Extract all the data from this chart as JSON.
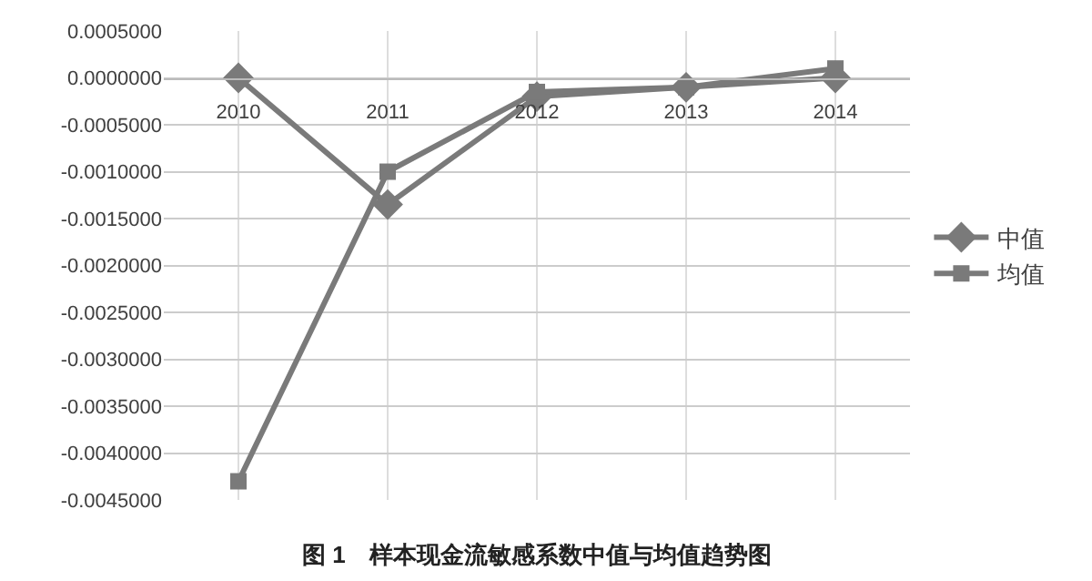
{
  "chart_data": {
    "type": "line",
    "title": "图 1　样本现金流敏感系数中值与均值趋势图",
    "categories": [
      "2010",
      "2011",
      "2012",
      "2013",
      "2014"
    ],
    "series": [
      {
        "name": "中值",
        "color": "#7a7a7a",
        "marker": "diamond",
        "values": [
          0.0,
          -0.00135,
          -0.0002,
          -0.0001,
          0.0
        ]
      },
      {
        "name": "均值",
        "color": "#7a7a7a",
        "marker": "square",
        "values": [
          -0.0043,
          -0.001,
          -0.00015,
          -0.0001,
          0.0001
        ]
      }
    ],
    "ylim": [
      -0.0045,
      0.0005
    ],
    "yticks": [
      {
        "value": 0.0005,
        "label": "0.0005000"
      },
      {
        "value": 0.0,
        "label": "0.0000000"
      },
      {
        "value": -0.0005,
        "label": "-0.0005000"
      },
      {
        "value": -0.001,
        "label": "-0.0010000"
      },
      {
        "value": -0.0015,
        "label": "-0.0015000"
      },
      {
        "value": -0.002,
        "label": "-0.0020000"
      },
      {
        "value": -0.0025,
        "label": "-0.0025000"
      },
      {
        "value": -0.003,
        "label": "-0.0030000"
      },
      {
        "value": -0.0035,
        "label": "-0.0035000"
      },
      {
        "value": -0.004,
        "label": "-0.0040000"
      },
      {
        "value": -0.0045,
        "label": "-0.0045000"
      }
    ],
    "grid": true,
    "legend": "right",
    "line_style": "solid"
  }
}
